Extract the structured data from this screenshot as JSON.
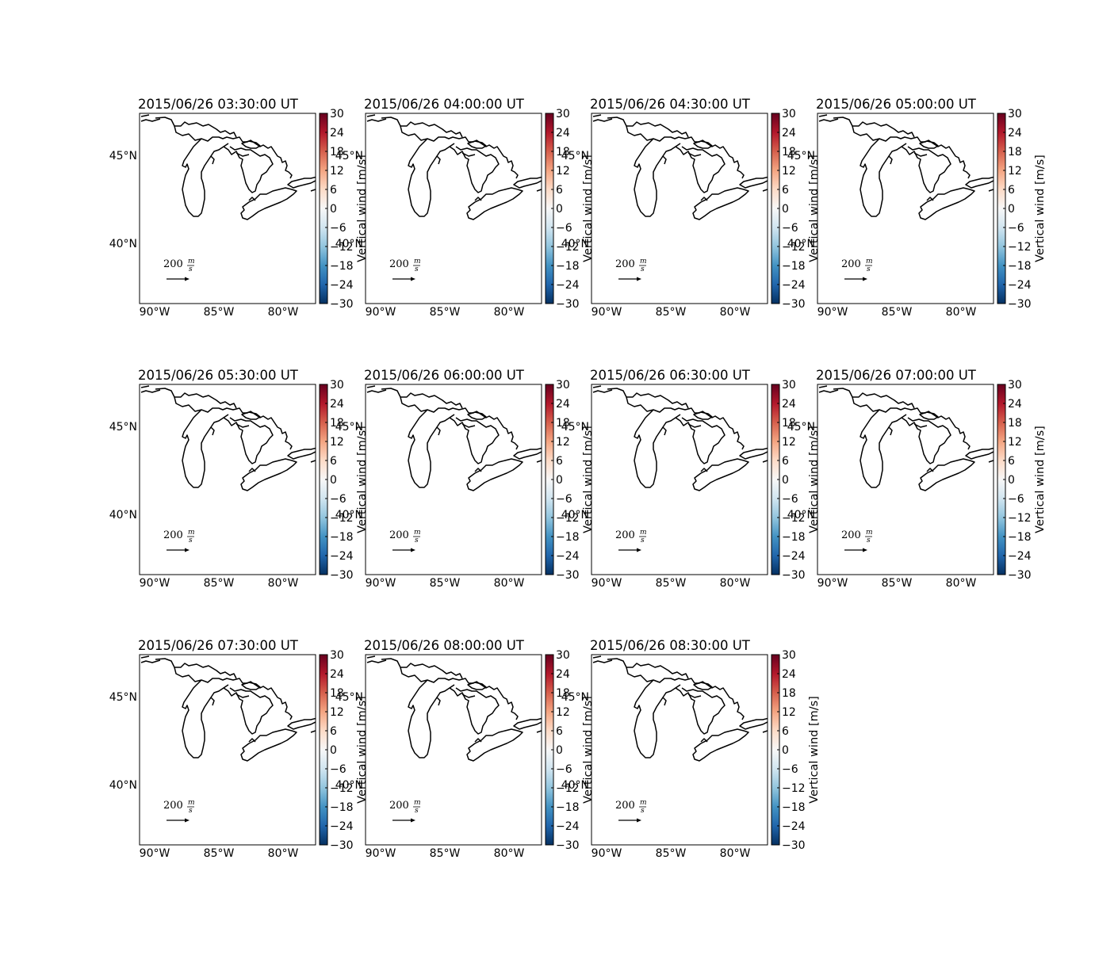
{
  "figure": {
    "panels": [
      {
        "title": "2015/06/26 03:30:00 UT"
      },
      {
        "title": "2015/06/26 04:00:00 UT"
      },
      {
        "title": "2015/06/26 04:30:00 UT"
      },
      {
        "title": "2015/06/26 05:00:00 UT"
      },
      {
        "title": "2015/06/26 05:30:00 UT"
      },
      {
        "title": "2015/06/26 06:00:00 UT"
      },
      {
        "title": "2015/06/26 06:30:00 UT"
      },
      {
        "title": "2015/06/26 07:00:00 UT"
      },
      {
        "title": "2015/06/26 07:30:00 UT"
      },
      {
        "title": "2015/06/26 08:00:00 UT"
      },
      {
        "title": "2015/06/26 08:30:00 UT"
      }
    ],
    "lat_ticks": [
      "45°N",
      "40°N"
    ],
    "lon_ticks": [
      "90°W",
      "85°W",
      "80°W"
    ],
    "colorbar": {
      "label": "Vertical wind [m/s]",
      "ticks": [
        "30",
        "24",
        "18",
        "12",
        "6",
        "0",
        "−6",
        "−12",
        "−18",
        "−24",
        "−30"
      ],
      "colormap": "RdBu_r",
      "colors_top_to_bottom": [
        "#67001f",
        "#b2182b",
        "#d6604d",
        "#f4a582",
        "#fddbc7",
        "#f7f7f7",
        "#d1e5f0",
        "#92c5de",
        "#4393c3",
        "#2166ac",
        "#053061"
      ]
    },
    "quiver_key": {
      "value": "200",
      "unit_num": "m",
      "unit_den": "s"
    },
    "line_color": "#000000"
  }
}
